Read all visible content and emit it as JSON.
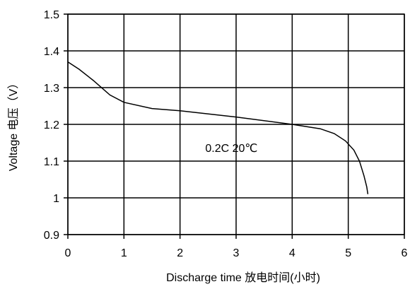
{
  "chart_data": {
    "type": "line",
    "xlabel": "Discharge time 放电时间(小时)",
    "ylabel": "Voltage 电压（V）",
    "xlim": [
      0,
      6
    ],
    "ylim": [
      0.9,
      1.5
    ],
    "x_ticks": [
      "0",
      "1",
      "2",
      "3",
      "4",
      "5",
      "6"
    ],
    "y_ticks": [
      "0.9",
      "1",
      "1.1",
      "1.2",
      "1.3",
      "1.4",
      "1.5"
    ],
    "grid": true,
    "legend": "none",
    "annotation": "0.2C 20℃",
    "line_color": "#000000",
    "series": [
      {
        "x": [
          0,
          0.2,
          0.45,
          0.75,
          1.0,
          1.5,
          2.0,
          3.0,
          4.0,
          4.5,
          4.75,
          4.95,
          5.1,
          5.2,
          5.28,
          5.33,
          5.35
        ],
        "y": [
          1.37,
          1.35,
          1.32,
          1.28,
          1.26,
          1.243,
          1.237,
          1.22,
          1.2,
          1.188,
          1.175,
          1.155,
          1.13,
          1.1,
          1.06,
          1.03,
          1.01
        ]
      }
    ]
  }
}
